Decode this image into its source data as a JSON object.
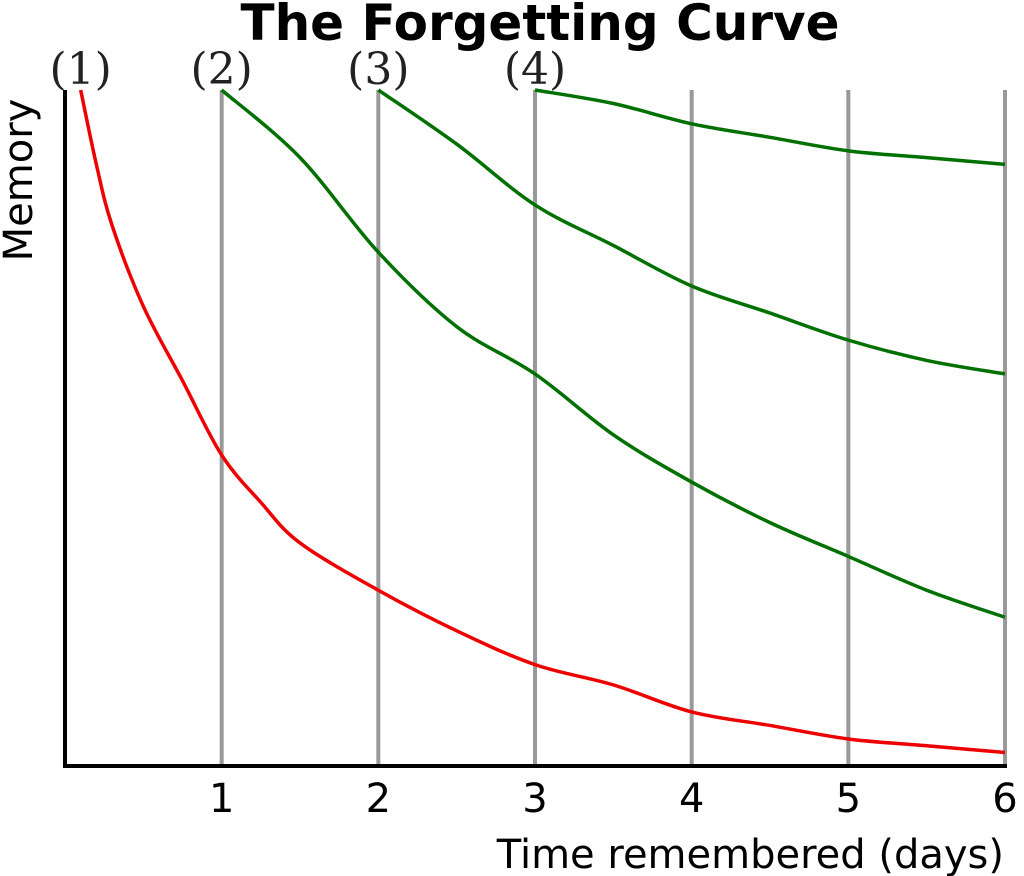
{
  "chart_data": {
    "type": "line",
    "title": "The Forgetting Curve",
    "xlabel": "Time remembered (days)",
    "ylabel": "Memory",
    "xlim": [
      0,
      6
    ],
    "ylim": [
      0,
      1
    ],
    "x_ticks": [
      1,
      2,
      3,
      4,
      5,
      6
    ],
    "grid": "vertical",
    "review_markers": [
      {
        "label": "(1)",
        "x": 0.1
      },
      {
        "label": "(2)",
        "x": 1
      },
      {
        "label": "(3)",
        "x": 2
      },
      {
        "label": "(4)",
        "x": 3
      }
    ],
    "series": [
      {
        "color": "#ee0000",
        "x": [
          0.1,
          0.2,
          0.3,
          0.5,
          0.75,
          1,
          1.25,
          1.5,
          2,
          2.5,
          3,
          3.5,
          4,
          4.5,
          5,
          5.5,
          6
        ],
        "y": [
          1.0,
          0.89,
          0.8,
          0.68,
          0.57,
          0.46,
          0.39,
          0.33,
          0.26,
          0.2,
          0.15,
          0.12,
          0.08,
          0.06,
          0.04,
          0.03,
          0.02
        ]
      },
      {
        "color": "#007000",
        "x": [
          1,
          1.5,
          2,
          2.5,
          3,
          3.5,
          4,
          4.5,
          5,
          5.5,
          6
        ],
        "y": [
          1.0,
          0.9,
          0.76,
          0.65,
          0.58,
          0.49,
          0.42,
          0.36,
          0.31,
          0.26,
          0.22
        ]
      },
      {
        "color": "#007000",
        "x": [
          2,
          2.5,
          3,
          3.5,
          4,
          4.5,
          5,
          5.5,
          6
        ],
        "y": [
          1.0,
          0.92,
          0.83,
          0.77,
          0.71,
          0.67,
          0.63,
          0.6,
          0.58
        ]
      },
      {
        "color": "#007000",
        "x": [
          3,
          3.5,
          4,
          4.5,
          5,
          5.5,
          6
        ],
        "y": [
          1.0,
          0.98,
          0.95,
          0.93,
          0.91,
          0.9,
          0.89
        ]
      }
    ]
  }
}
